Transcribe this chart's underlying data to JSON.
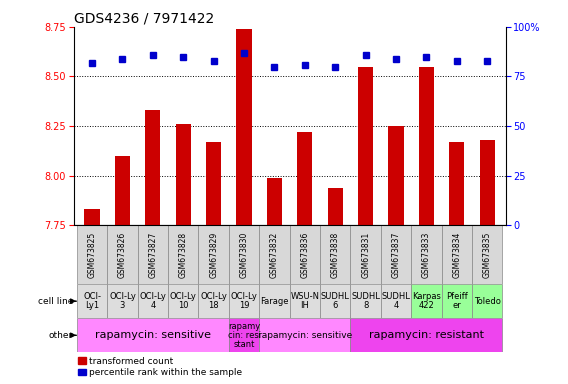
{
  "title": "GDS4236 / 7971422",
  "samples": [
    "GSM673825",
    "GSM673826",
    "GSM673827",
    "GSM673828",
    "GSM673829",
    "GSM673830",
    "GSM673832",
    "GSM673836",
    "GSM673838",
    "GSM673831",
    "GSM673837",
    "GSM673833",
    "GSM673834",
    "GSM673835"
  ],
  "transformed_counts": [
    7.83,
    8.1,
    8.33,
    8.26,
    8.17,
    8.74,
    7.99,
    8.22,
    7.94,
    8.55,
    8.25,
    8.55,
    8.17,
    8.18
  ],
  "percentile_ranks": [
    82,
    84,
    86,
    85,
    83,
    87,
    80,
    81,
    80,
    86,
    84,
    85,
    83,
    83
  ],
  "cell_lines_top": [
    "OCI-",
    "OCI-Ly",
    "OCI-Ly",
    "OCI-Ly",
    "OCI-Ly",
    "OCI-Ly",
    "Farage",
    "WSU-N",
    "SUDHL",
    "SUDHL",
    "SUDHL",
    "Karpas",
    "Pfeiff",
    "Toledo"
  ],
  "cell_lines_bot": [
    "Ly1",
    "3",
    "4",
    "10",
    "18",
    "19",
    "",
    "IH",
    "6",
    "8",
    "4",
    "422",
    "er",
    ""
  ],
  "cell_line_colors": [
    "#dddddd",
    "#dddddd",
    "#dddddd",
    "#dddddd",
    "#dddddd",
    "#dddddd",
    "#dddddd",
    "#dddddd",
    "#dddddd",
    "#dddddd",
    "#dddddd",
    "#99ff99",
    "#99ff99",
    "#99ff99"
  ],
  "other_groups": [
    {
      "label": "rapamycin: sensitive",
      "start": 0,
      "end": 5,
      "color": "#ff88ff",
      "fontsize": 8
    },
    {
      "label": "rapamy\ncin: resi\nstant",
      "start": 5,
      "end": 6,
      "color": "#ee44ee",
      "fontsize": 6
    },
    {
      "label": "rapamycin: sensitive",
      "start": 6,
      "end": 9,
      "color": "#ff88ff",
      "fontsize": 6.5
    },
    {
      "label": "rapamycin: resistant",
      "start": 9,
      "end": 14,
      "color": "#ee44ee",
      "fontsize": 8
    }
  ],
  "ylim": [
    7.75,
    8.75
  ],
  "yticks": [
    7.75,
    8.0,
    8.25,
    8.5,
    8.75
  ],
  "y2lim": [
    0,
    100
  ],
  "y2ticks": [
    0,
    25,
    50,
    75,
    100
  ],
  "bar_color": "#cc0000",
  "dot_color": "#0000cc",
  "title_fontsize": 10,
  "tick_fontsize": 7,
  "sample_fontsize": 5.5,
  "cell_fontsize": 6
}
